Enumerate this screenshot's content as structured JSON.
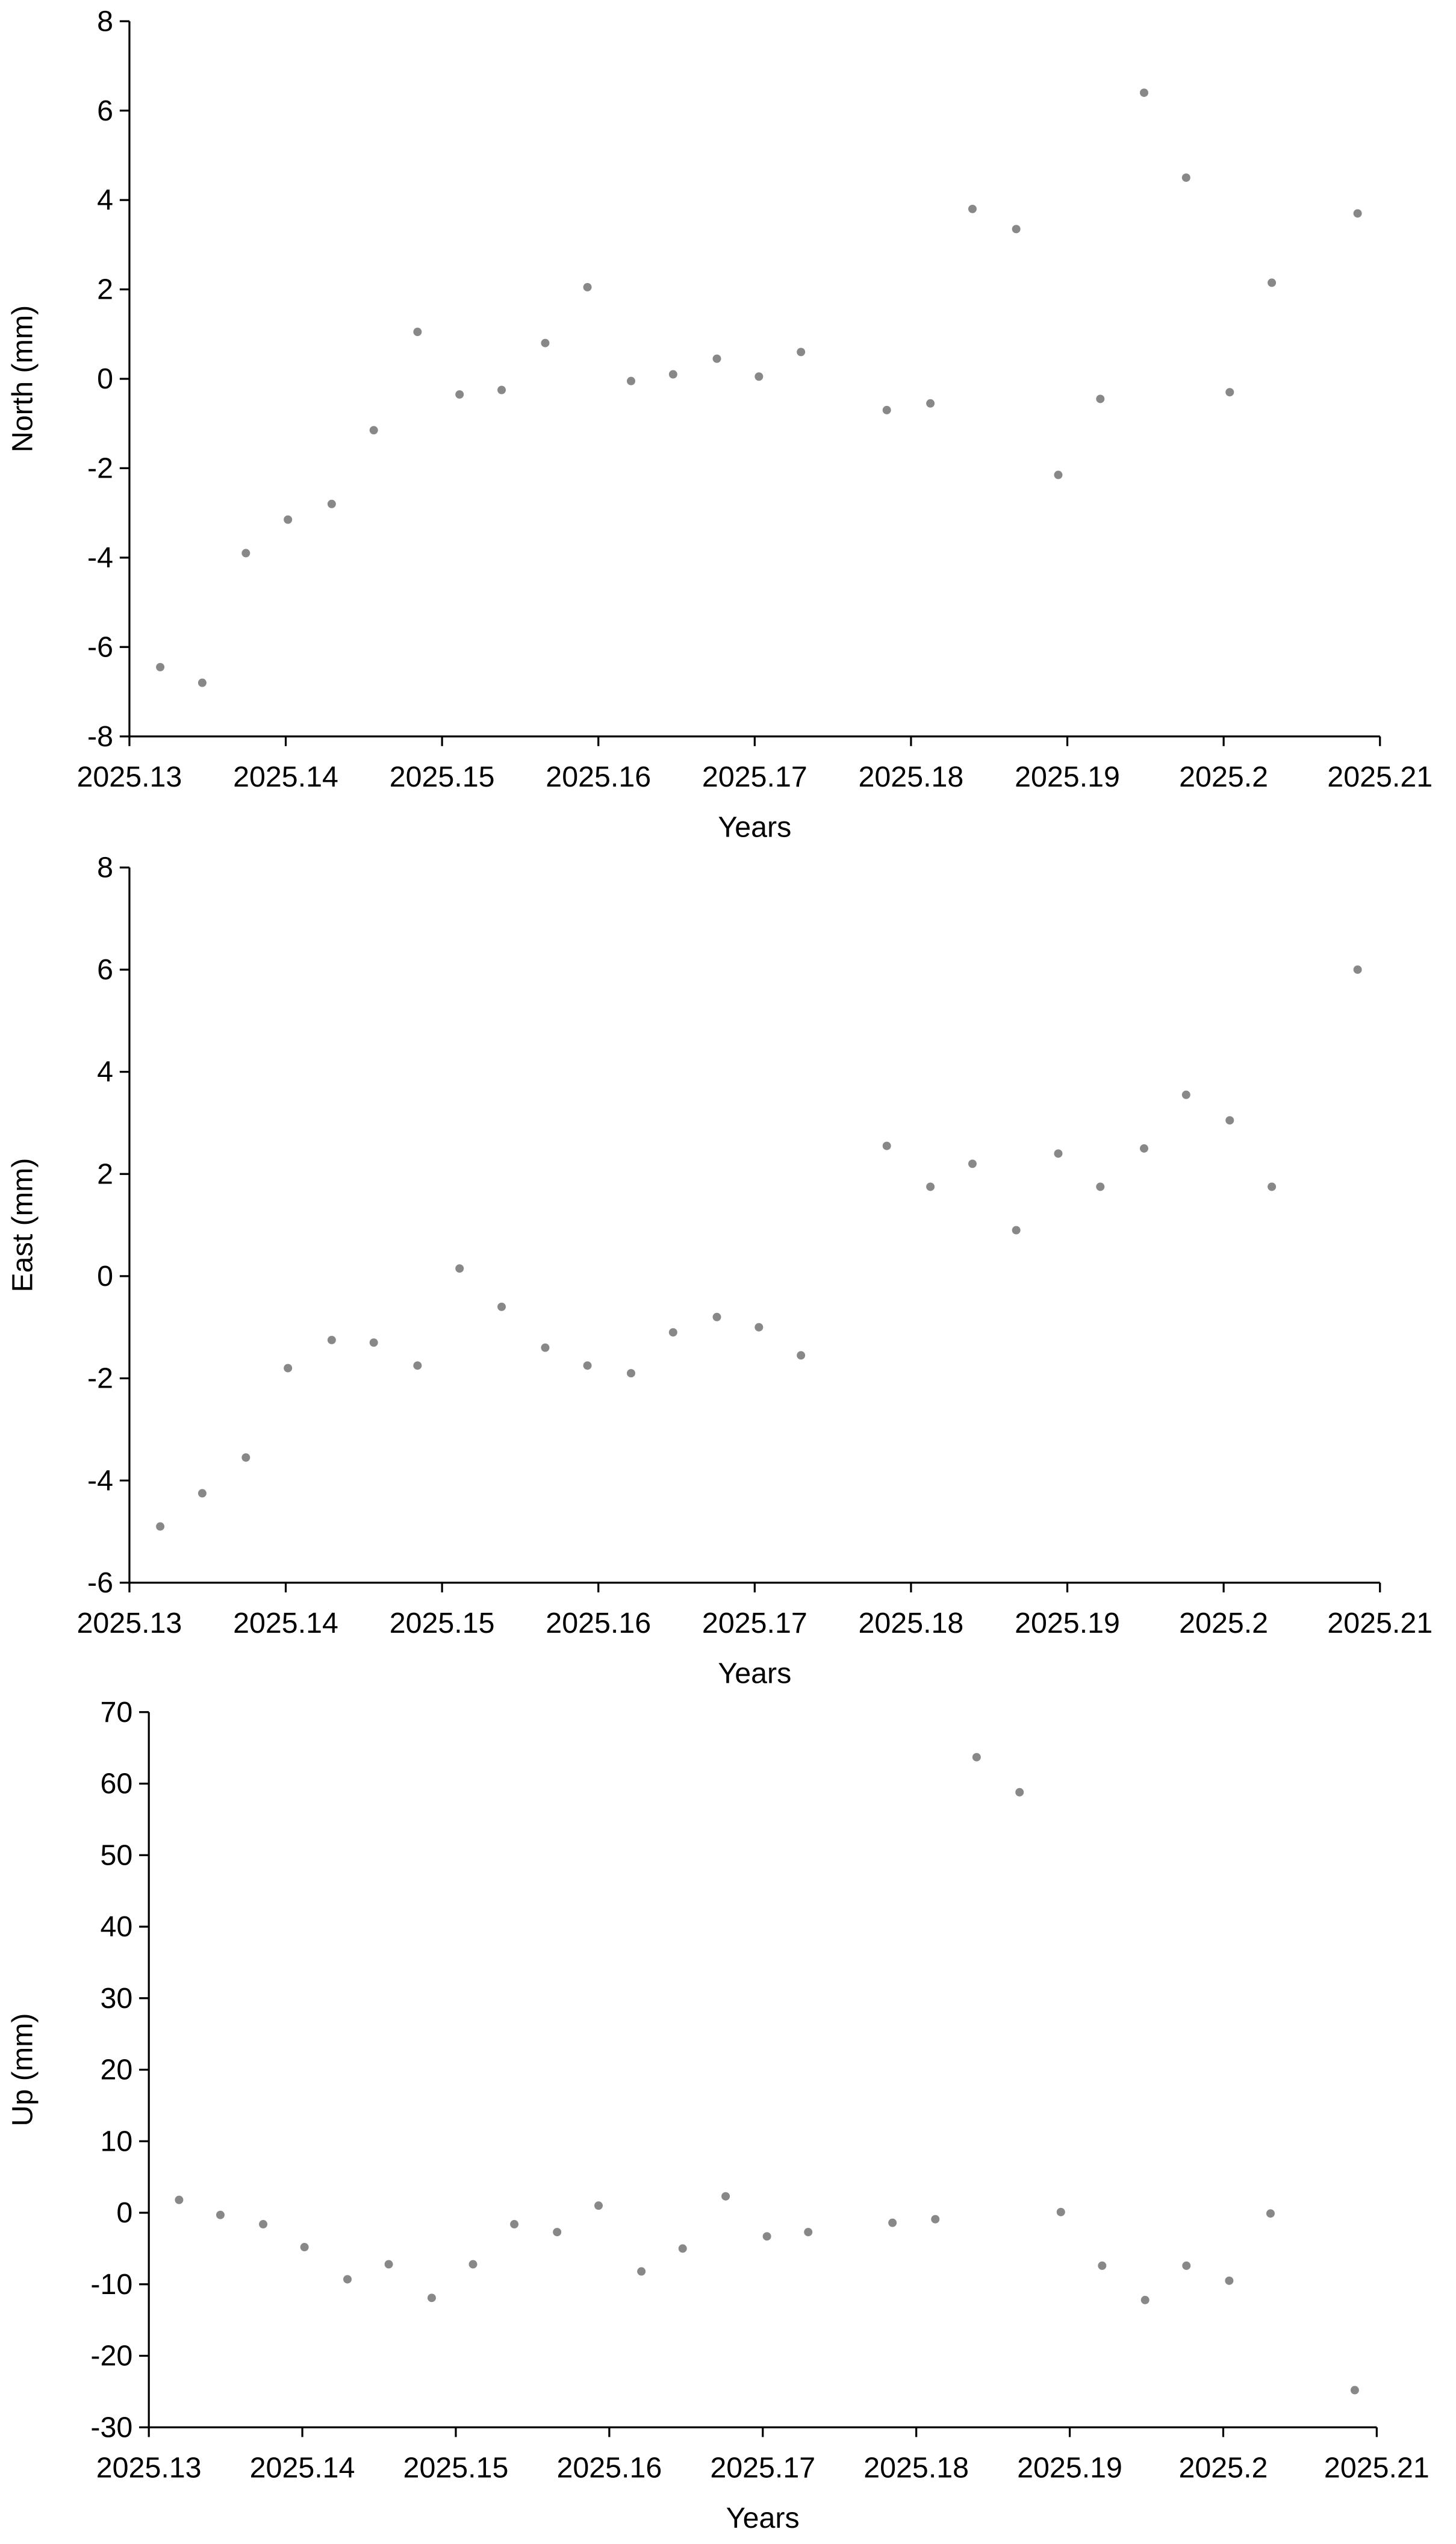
{
  "chart_data": [
    {
      "type": "scatter",
      "xlabel": "Years",
      "ylabel": "North (mm)",
      "color": "#888888",
      "x": [
        2025.13197,
        2025.13466,
        2025.13745,
        2025.14014,
        2025.14294,
        2025.14563,
        2025.14843,
        2025.15112,
        2025.15381,
        2025.1566,
        2025.1593,
        2025.16209,
        2025.16478,
        2025.16758,
        2025.17027,
        2025.17296,
        2025.17845,
        2025.18124,
        2025.18393,
        2025.18673,
        2025.18942,
        2025.19211,
        2025.19491,
        2025.1976,
        2025.20039,
        2025.20308,
        2025.20857
      ],
      "values": [
        -6.45,
        -6.8,
        -3.9,
        -3.15,
        -2.8,
        -1.15,
        1.05,
        -0.35,
        -0.25,
        0.8,
        2.05,
        -0.05,
        0.1,
        0.45,
        0.05,
        0.6,
        -0.7,
        -0.55,
        3.8,
        3.35,
        -2.15,
        -0.45,
        6.4,
        4.5,
        -0.3,
        2.15,
        3.7
      ],
      "xlim": [
        2025.13,
        2025.21
      ],
      "xticks": [
        2025.13,
        2025.14,
        2025.15,
        2025.16,
        2025.17,
        2025.18,
        2025.19,
        2025.2,
        2025.21
      ],
      "ylim": [
        -8,
        8
      ],
      "yticks": [
        -8,
        -6,
        -4,
        -2,
        0,
        2,
        4,
        6,
        8
      ]
    },
    {
      "type": "scatter",
      "xlabel": "Years",
      "ylabel": "East (mm)",
      "color": "#888888",
      "x": [
        2025.13197,
        2025.13466,
        2025.13745,
        2025.14014,
        2025.14294,
        2025.14563,
        2025.14843,
        2025.15112,
        2025.15381,
        2025.1566,
        2025.1593,
        2025.16209,
        2025.16478,
        2025.16758,
        2025.17027,
        2025.17296,
        2025.17845,
        2025.18124,
        2025.18393,
        2025.18673,
        2025.18942,
        2025.19211,
        2025.19491,
        2025.1976,
        2025.20039,
        2025.20308,
        2025.20857
      ],
      "values": [
        -4.9,
        -4.25,
        -3.55,
        -1.8,
        -1.25,
        -1.3,
        -1.75,
        0.15,
        -0.6,
        -1.4,
        -1.75,
        -1.9,
        -1.1,
        -0.8,
        -1.0,
        -1.55,
        2.55,
        1.75,
        2.2,
        0.9,
        2.4,
        1.75,
        2.5,
        3.55,
        3.05,
        1.75,
        6.0
      ],
      "xlim": [
        2025.13,
        2025.21
      ],
      "xticks": [
        2025.13,
        2025.14,
        2025.15,
        2025.16,
        2025.17,
        2025.18,
        2025.19,
        2025.2,
        2025.21
      ],
      "ylim": [
        -6,
        8
      ],
      "yticks": [
        -6,
        -4,
        -2,
        0,
        2,
        4,
        6,
        8
      ]
    },
    {
      "type": "scatter",
      "xlabel": "Years",
      "ylabel": "Up (mm)",
      "color": "#888888",
      "x": [
        2025.13197,
        2025.13466,
        2025.13745,
        2025.14014,
        2025.14294,
        2025.14563,
        2025.14843,
        2025.15112,
        2025.15381,
        2025.1566,
        2025.1593,
        2025.16209,
        2025.16478,
        2025.16758,
        2025.17027,
        2025.17296,
        2025.17845,
        2025.18124,
        2025.18393,
        2025.18673,
        2025.18942,
        2025.19211,
        2025.19491,
        2025.1976,
        2025.20039,
        2025.20308,
        2025.20857
      ],
      "values": [
        1.8,
        -0.3,
        -1.6,
        -4.8,
        -9.3,
        -7.2,
        -11.9,
        -7.2,
        -1.6,
        -2.7,
        1.0,
        -8.2,
        -5.0,
        2.3,
        -3.3,
        -2.7,
        -1.4,
        -0.9,
        63.7,
        58.8,
        0.1,
        -7.4,
        -12.2,
        -7.4,
        -9.5,
        -0.1,
        -24.8
      ],
      "xlim": [
        2025.13,
        2025.21
      ],
      "xticks": [
        2025.13,
        2025.14,
        2025.15,
        2025.16,
        2025.17,
        2025.18,
        2025.19,
        2025.2,
        2025.21
      ],
      "ylim": [
        -30,
        70
      ],
      "yticks": [
        -30,
        -20,
        -10,
        0,
        10,
        20,
        30,
        40,
        50,
        60,
        70
      ]
    }
  ]
}
